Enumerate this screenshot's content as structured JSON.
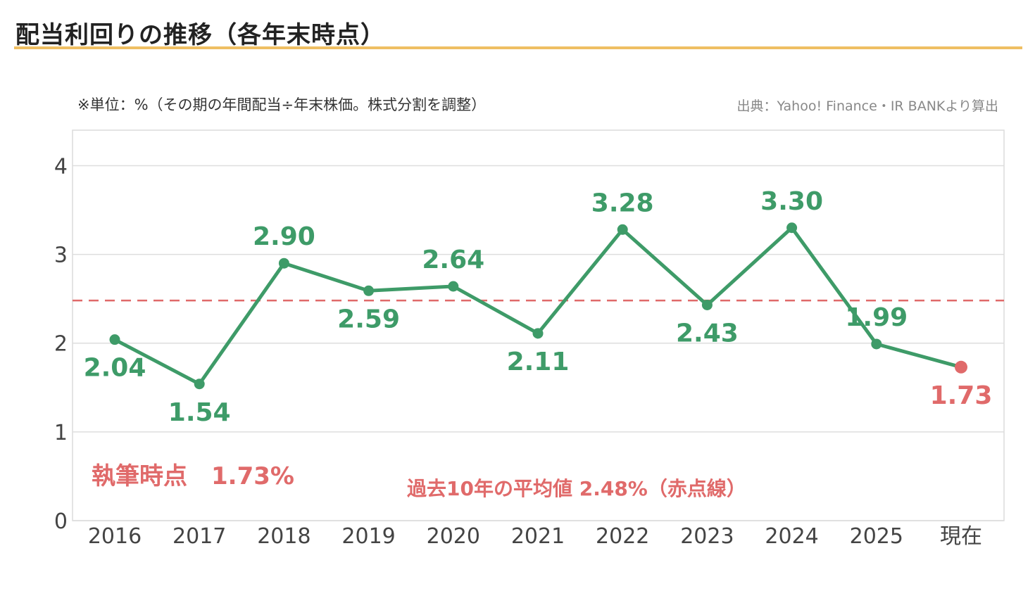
{
  "header": {
    "title": "配当利回りの推移（各年末時点）"
  },
  "colors": {
    "accent_rule": "#efbf63",
    "series": "#3e9b68",
    "current": "#e06a6a",
    "grid": "#dedede",
    "frame": "#dcdcdc"
  },
  "annotations": {
    "unit_note": "※単位：%（その期の年間配当÷年末株価。株式分割を調整）",
    "source": "出典：Yahoo! Finance・IR BANKより算出",
    "current_label": "執筆時点　1.73%",
    "average_label": "過去10年の平均値 2.48%（赤点線）"
  },
  "chart_data": {
    "type": "line",
    "title": "配当利回りの推移（各年末時点）",
    "xlabel": "",
    "ylabel": "",
    "categories": [
      "2016",
      "2017",
      "2018",
      "2019",
      "2020",
      "2021",
      "2022",
      "2023",
      "2024",
      "2025",
      "現在"
    ],
    "series": [
      {
        "values": [
          2.04,
          1.54,
          2.9,
          2.59,
          2.64,
          2.11,
          3.28,
          2.43,
          3.3,
          1.99,
          1.73
        ],
        "labels": [
          "2.04",
          "1.54",
          "2.90",
          "2.59",
          "2.64",
          "2.11",
          "3.28",
          "2.43",
          "3.30",
          "1.99",
          "1.73"
        ]
      }
    ],
    "highlight_last_point": true,
    "average_line": {
      "value": 2.48,
      "style": "dashed"
    },
    "ylim": [
      0,
      4.4
    ],
    "yticks": [
      "0",
      "1",
      "2",
      "3",
      "4"
    ],
    "grid": true,
    "legend": "none"
  }
}
